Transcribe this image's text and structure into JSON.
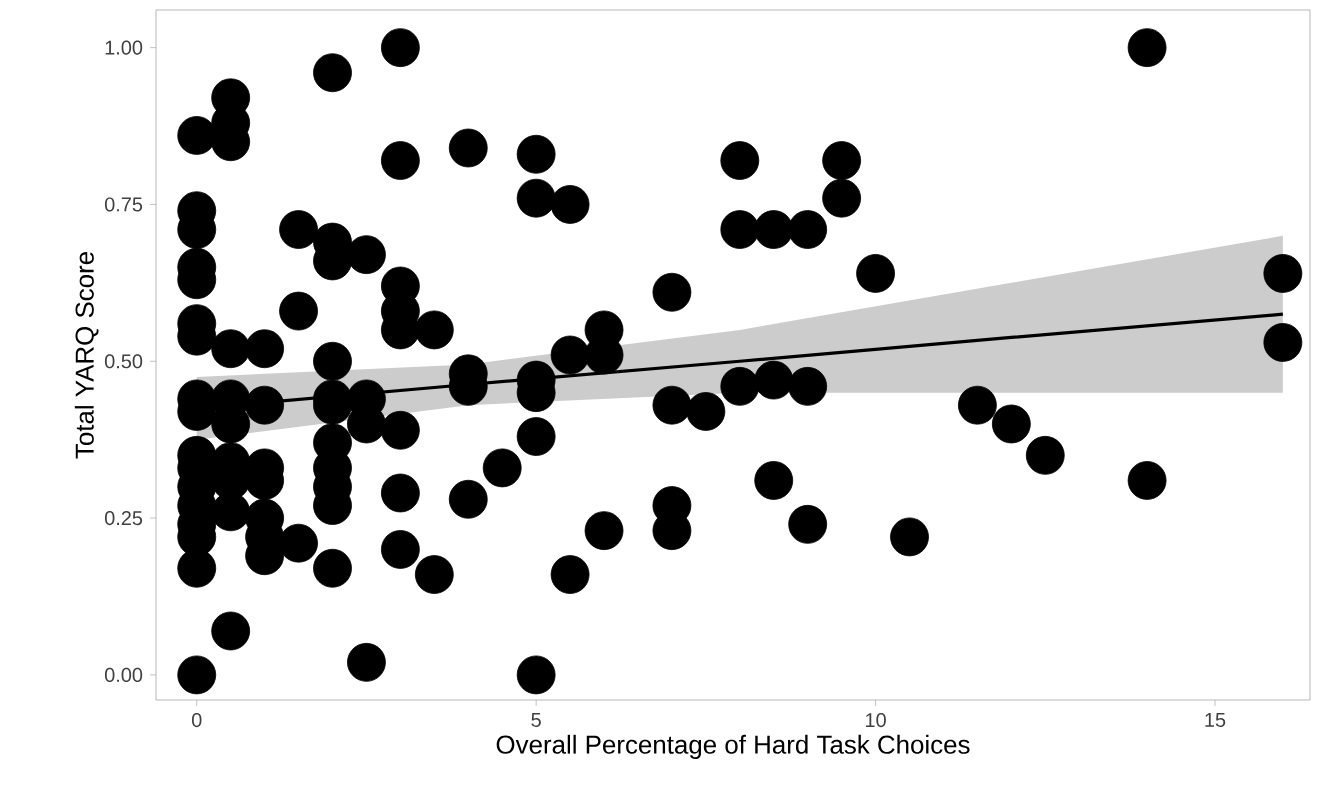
{
  "chart_data": {
    "type": "scatter",
    "xlabel": "Overall Percentage of Hard Task Choices",
    "ylabel": "Total YARQ Score",
    "xlim": [
      -0.6,
      16.4
    ],
    "ylim": [
      -0.04,
      1.06
    ],
    "xticks": [
      0,
      5,
      10,
      15
    ],
    "yticks": [
      {
        "value": 0,
        "label": "0.00"
      },
      {
        "value": 0.25,
        "label": "0.25"
      },
      {
        "value": 0.5,
        "label": "0.50"
      },
      {
        "value": 0.75,
        "label": "0.75"
      },
      {
        "value": 1,
        "label": "1.00"
      }
    ],
    "grid": false,
    "series": [
      {
        "marker": "circle",
        "color": "#000000",
        "x": [
          0,
          0,
          0,
          0,
          0,
          0,
          0,
          0,
          0,
          0,
          0,
          0,
          0,
          0,
          0,
          0,
          0,
          0.5,
          0.5,
          0.5,
          0.5,
          0.5,
          0.5,
          0.5,
          0.5,
          0.5,
          0.5,
          1,
          1,
          1,
          1,
          1,
          1,
          1,
          1.5,
          1.5,
          1.5,
          2,
          2,
          2,
          2,
          2,
          2,
          2,
          2,
          2,
          2,
          2,
          2.5,
          2.5,
          2.5,
          2.5,
          3,
          3,
          3,
          3,
          3,
          3,
          3,
          3,
          3.5,
          3.5,
          4,
          4,
          4,
          4,
          4.5,
          5,
          5,
          5,
          5,
          5,
          5,
          5.5,
          5.5,
          5.5,
          6,
          6,
          6,
          7,
          7,
          7,
          7,
          7.5,
          8,
          8,
          8,
          8.5,
          8.5,
          8.5,
          9,
          9,
          9,
          9.5,
          9.5,
          10,
          10.5,
          11.5,
          12,
          12.5,
          14,
          14,
          16,
          16
        ],
        "values": [
          0.86,
          0.74,
          0.71,
          0.65,
          0.63,
          0.56,
          0.54,
          0.44,
          0.42,
          0.35,
          0.33,
          0.3,
          0.27,
          0.24,
          0.22,
          0.17,
          0,
          0.92,
          0.88,
          0.85,
          0.52,
          0.44,
          0.4,
          0.34,
          0.31,
          0.26,
          0.07,
          0.52,
          0.43,
          0.33,
          0.31,
          0.25,
          0.22,
          0.19,
          0.71,
          0.58,
          0.21,
          0.96,
          0.69,
          0.66,
          0.5,
          0.44,
          0.43,
          0.37,
          0.33,
          0.3,
          0.27,
          0.17,
          0.67,
          0.44,
          0.4,
          0.02,
          1,
          0.82,
          0.62,
          0.58,
          0.55,
          0.39,
          0.29,
          0.2,
          0.55,
          0.16,
          0.84,
          0.48,
          0.46,
          0.28,
          0.33,
          0.83,
          0.76,
          0.47,
          0.45,
          0.38,
          0,
          0.75,
          0.51,
          0.16,
          0.55,
          0.51,
          0.23,
          0.61,
          0.43,
          0.27,
          0.23,
          0.42,
          0.82,
          0.71,
          0.46,
          0.71,
          0.47,
          0.31,
          0.71,
          0.46,
          0.24,
          0.82,
          0.76,
          0.64,
          0.22,
          0.43,
          0.4,
          0.35,
          1,
          0.31,
          0.64,
          0.53
        ]
      },
      {
        "type": "line",
        "marker": "none",
        "color": "#000000",
        "x": [
          0,
          4,
          8,
          12,
          16
        ],
        "values": [
          0.425,
          0.463,
          0.5,
          0.538,
          0.575
        ],
        "lower": [
          0.375,
          0.43,
          0.45,
          0.45,
          0.45
        ],
        "upper": [
          0.475,
          0.495,
          0.55,
          0.625,
          0.7
        ]
      }
    ]
  }
}
